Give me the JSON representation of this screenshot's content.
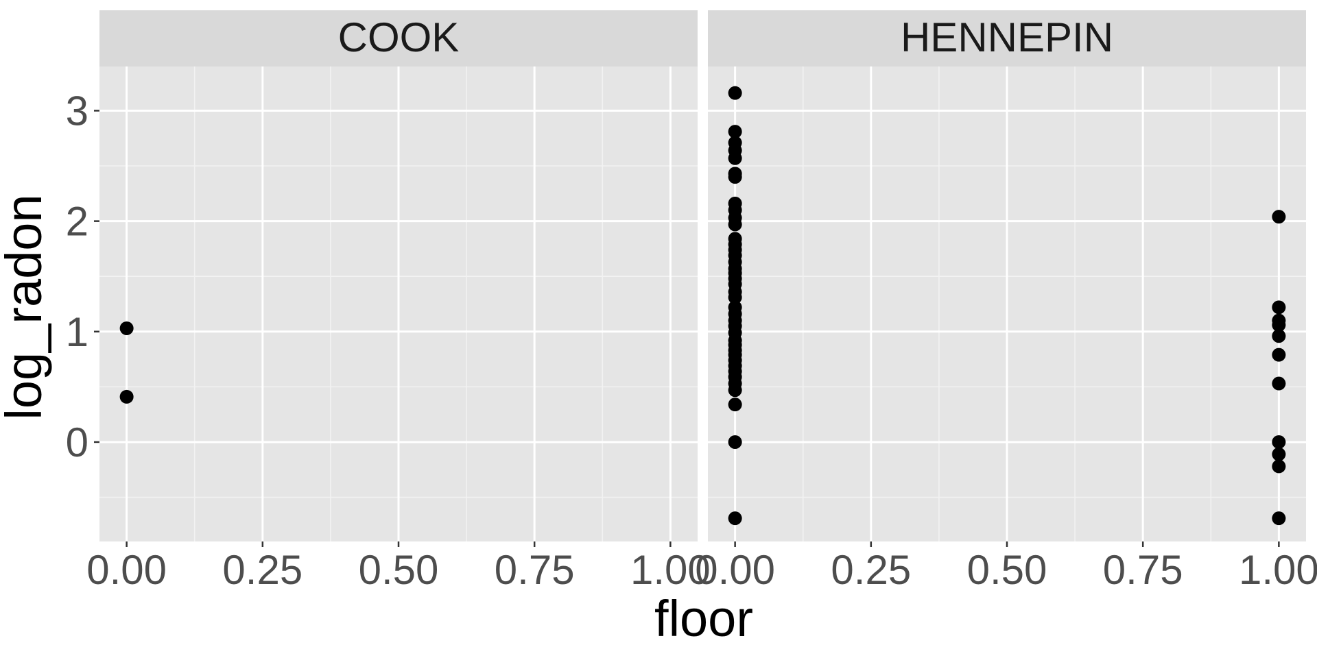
{
  "chart_data": {
    "type": "scatter",
    "xlabel": "floor",
    "ylabel": "log_radon",
    "xlim": [
      -0.05,
      1.05
    ],
    "ylim": [
      -0.9,
      3.4
    ],
    "x_ticks": [
      0,
      0.25,
      0.5,
      0.75,
      1
    ],
    "x_tick_labels": [
      "0.00",
      "0.25",
      "0.50",
      "0.75",
      "1.00"
    ],
    "y_ticks": [
      0,
      1,
      2,
      3
    ],
    "y_tick_labels": [
      "0",
      "1",
      "2",
      "3"
    ],
    "grid": true,
    "marker_color": "#000000",
    "panel_background": "#e5e5e5",
    "strip_background": "#d9d9d9",
    "panels": [
      {
        "name": "COOK",
        "points": [
          {
            "x": 0,
            "y": 1.03
          },
          {
            "x": 0,
            "y": 0.41
          }
        ]
      },
      {
        "name": "HENNEPIN",
        "points": [
          {
            "x": 0,
            "y": 3.16
          },
          {
            "x": 0,
            "y": 2.81
          },
          {
            "x": 0,
            "y": 2.71
          },
          {
            "x": 0,
            "y": 2.64
          },
          {
            "x": 0,
            "y": 2.57
          },
          {
            "x": 0,
            "y": 2.43
          },
          {
            "x": 0,
            "y": 2.4
          },
          {
            "x": 0,
            "y": 2.16
          },
          {
            "x": 0,
            "y": 2.1
          },
          {
            "x": 0,
            "y": 2.03
          },
          {
            "x": 0,
            "y": 1.97
          },
          {
            "x": 0,
            "y": 1.84
          },
          {
            "x": 0,
            "y": 1.79
          },
          {
            "x": 0,
            "y": 1.74
          },
          {
            "x": 0,
            "y": 1.69
          },
          {
            "x": 0,
            "y": 1.63
          },
          {
            "x": 0,
            "y": 1.57
          },
          {
            "x": 0,
            "y": 1.53
          },
          {
            "x": 0,
            "y": 1.48
          },
          {
            "x": 0,
            "y": 1.43
          },
          {
            "x": 0,
            "y": 1.36
          },
          {
            "x": 0,
            "y": 1.31
          },
          {
            "x": 0,
            "y": 1.22
          },
          {
            "x": 0,
            "y": 1.16
          },
          {
            "x": 0,
            "y": 1.1
          },
          {
            "x": 0,
            "y": 1.05
          },
          {
            "x": 0,
            "y": 0.99
          },
          {
            "x": 0,
            "y": 0.92
          },
          {
            "x": 0,
            "y": 0.88
          },
          {
            "x": 0,
            "y": 0.83
          },
          {
            "x": 0,
            "y": 0.79
          },
          {
            "x": 0,
            "y": 0.74
          },
          {
            "x": 0,
            "y": 0.69
          },
          {
            "x": 0,
            "y": 0.64
          },
          {
            "x": 0,
            "y": 0.59
          },
          {
            "x": 0,
            "y": 0.53
          },
          {
            "x": 0,
            "y": 0.47
          },
          {
            "x": 0,
            "y": 0.34
          },
          {
            "x": 0,
            "y": 0.0
          },
          {
            "x": 0,
            "y": -0.69
          },
          {
            "x": 1,
            "y": 2.04
          },
          {
            "x": 1,
            "y": 1.22
          },
          {
            "x": 1,
            "y": 1.1
          },
          {
            "x": 1,
            "y": 1.06
          },
          {
            "x": 1,
            "y": 0.96
          },
          {
            "x": 1,
            "y": 0.79
          },
          {
            "x": 1,
            "y": 0.53
          },
          {
            "x": 1,
            "y": 0.0
          },
          {
            "x": 1,
            "y": -0.11
          },
          {
            "x": 1,
            "y": -0.22
          },
          {
            "x": 1,
            "y": -0.69
          }
        ]
      }
    ]
  }
}
